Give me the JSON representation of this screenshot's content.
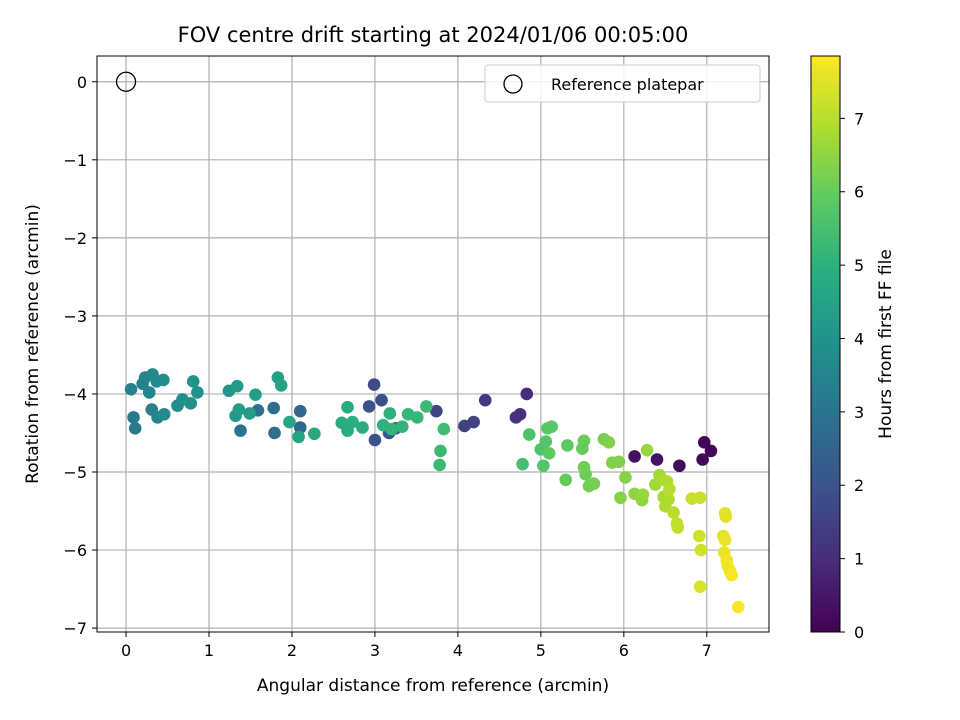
{
  "chart_data": {
    "type": "scatter",
    "title": "FOV centre drift starting at 2024/01/06 00:05:00",
    "xlabel": "Angular distance from reference (arcmin)",
    "ylabel": "Rotation from reference (arcmin)",
    "xlim": [
      -0.35,
      7.75
    ],
    "ylim": [
      -7.05,
      0.33
    ],
    "xticks": [
      0,
      1,
      2,
      3,
      4,
      5,
      6,
      7
    ],
    "yticks": [
      0,
      -1,
      -2,
      -3,
      -4,
      -5,
      -6,
      -7
    ],
    "grid": true,
    "legend": {
      "position": "top-right",
      "entries": [
        {
          "label": "Reference platepar",
          "marker": "open-circle"
        }
      ]
    },
    "reference_point": {
      "x": 0,
      "y": 0
    },
    "colorbar": {
      "label": "Hours from first FF file",
      "min": 0,
      "max": 7.85,
      "ticks": [
        0,
        1,
        2,
        3,
        4,
        5,
        6,
        7
      ],
      "colormap": "viridis"
    },
    "series": [
      {
        "points": [
          {
            "x": 6.97,
            "y": -4.62,
            "c": 0.1
          },
          {
            "x": 7.05,
            "y": -4.73,
            "c": 0.1
          },
          {
            "x": 6.95,
            "y": -4.84,
            "c": 0.15
          },
          {
            "x": 6.67,
            "y": -4.92,
            "c": 0.25
          },
          {
            "x": 6.13,
            "y": -4.8,
            "c": 0.35
          },
          {
            "x": 6.4,
            "y": -4.84,
            "c": 0.4
          },
          {
            "x": 4.83,
            "y": -4.0,
            "c": 1.0
          },
          {
            "x": 4.75,
            "y": -4.26,
            "c": 1.1
          },
          {
            "x": 4.7,
            "y": -4.3,
            "c": 1.1
          },
          {
            "x": 4.33,
            "y": -4.08,
            "c": 1.3
          },
          {
            "x": 4.19,
            "y": -4.36,
            "c": 1.5
          },
          {
            "x": 4.08,
            "y": -4.41,
            "c": 1.5
          },
          {
            "x": 3.74,
            "y": -4.22,
            "c": 1.6
          },
          {
            "x": 2.99,
            "y": -3.88,
            "c": 1.8
          },
          {
            "x": 3.08,
            "y": -4.08,
            "c": 1.9
          },
          {
            "x": 2.93,
            "y": -4.16,
            "c": 1.9
          },
          {
            "x": 3.0,
            "y": -4.59,
            "c": 2.0
          },
          {
            "x": 3.17,
            "y": -4.5,
            "c": 2.1
          },
          {
            "x": 3.25,
            "y": -4.44,
            "c": 2.3
          },
          {
            "x": 2.1,
            "y": -4.43,
            "c": 2.6
          },
          {
            "x": 2.1,
            "y": -4.22,
            "c": 2.6
          },
          {
            "x": 1.79,
            "y": -4.5,
            "c": 2.8
          },
          {
            "x": 1.78,
            "y": -4.18,
            "c": 2.8
          },
          {
            "x": 1.59,
            "y": -4.21,
            "c": 2.9
          },
          {
            "x": 1.38,
            "y": -4.47,
            "c": 3.0
          },
          {
            "x": 0.09,
            "y": -4.3,
            "c": 3.2
          },
          {
            "x": 0.11,
            "y": -4.44,
            "c": 3.2
          },
          {
            "x": 0.06,
            "y": -3.94,
            "c": 3.4
          },
          {
            "x": 0.2,
            "y": -3.87,
            "c": 3.4
          },
          {
            "x": 0.28,
            "y": -3.98,
            "c": 3.6
          },
          {
            "x": 0.23,
            "y": -3.79,
            "c": 3.5
          },
          {
            "x": 0.32,
            "y": -3.75,
            "c": 3.6
          },
          {
            "x": 0.31,
            "y": -4.2,
            "c": 3.4
          },
          {
            "x": 0.38,
            "y": -4.3,
            "c": 3.6
          },
          {
            "x": 0.46,
            "y": -4.26,
            "c": 3.7
          },
          {
            "x": 0.37,
            "y": -3.84,
            "c": 3.7
          },
          {
            "x": 0.45,
            "y": -3.82,
            "c": 3.8
          },
          {
            "x": 0.62,
            "y": -4.15,
            "c": 3.8
          },
          {
            "x": 0.68,
            "y": -4.07,
            "c": 3.9
          },
          {
            "x": 0.78,
            "y": -4.12,
            "c": 3.9
          },
          {
            "x": 0.81,
            "y": -3.84,
            "c": 4.0
          },
          {
            "x": 0.86,
            "y": -3.98,
            "c": 4.0
          },
          {
            "x": 1.24,
            "y": -3.96,
            "c": 4.1
          },
          {
            "x": 1.34,
            "y": -3.9,
            "c": 4.2
          },
          {
            "x": 1.32,
            "y": -4.28,
            "c": 4.2
          },
          {
            "x": 1.36,
            "y": -4.2,
            "c": 4.3
          },
          {
            "x": 1.49,
            "y": -4.25,
            "c": 4.3
          },
          {
            "x": 1.56,
            "y": -4.01,
            "c": 4.4
          },
          {
            "x": 1.83,
            "y": -3.79,
            "c": 4.5
          },
          {
            "x": 1.87,
            "y": -3.89,
            "c": 4.5
          },
          {
            "x": 1.97,
            "y": -4.36,
            "c": 4.6
          },
          {
            "x": 2.08,
            "y": -4.55,
            "c": 4.6
          },
          {
            "x": 2.27,
            "y": -4.51,
            "c": 4.7
          },
          {
            "x": 2.6,
            "y": -4.37,
            "c": 4.8
          },
          {
            "x": 2.67,
            "y": -4.17,
            "c": 4.8
          },
          {
            "x": 2.67,
            "y": -4.47,
            "c": 4.8
          },
          {
            "x": 2.73,
            "y": -4.36,
            "c": 4.9
          },
          {
            "x": 2.85,
            "y": -4.43,
            "c": 4.9
          },
          {
            "x": 3.1,
            "y": -4.4,
            "c": 5.0
          },
          {
            "x": 3.18,
            "y": -4.25,
            "c": 5.0
          },
          {
            "x": 3.2,
            "y": -4.45,
            "c": 5.1
          },
          {
            "x": 3.33,
            "y": -4.42,
            "c": 5.1
          },
          {
            "x": 3.4,
            "y": -4.26,
            "c": 5.2
          },
          {
            "x": 3.51,
            "y": -4.3,
            "c": 5.2
          },
          {
            "x": 3.62,
            "y": -4.16,
            "c": 5.3
          },
          {
            "x": 3.79,
            "y": -4.73,
            "c": 5.3
          },
          {
            "x": 3.78,
            "y": -4.91,
            "c": 5.3
          },
          {
            "x": 3.83,
            "y": -4.45,
            "c": 5.4
          },
          {
            "x": 4.78,
            "y": -4.9,
            "c": 5.5
          },
          {
            "x": 4.86,
            "y": -4.52,
            "c": 5.6
          },
          {
            "x": 5.0,
            "y": -4.71,
            "c": 5.6
          },
          {
            "x": 5.03,
            "y": -4.92,
            "c": 5.7
          },
          {
            "x": 5.06,
            "y": -4.61,
            "c": 5.7
          },
          {
            "x": 5.08,
            "y": -4.44,
            "c": 5.8
          },
          {
            "x": 5.13,
            "y": -4.42,
            "c": 5.8
          },
          {
            "x": 5.1,
            "y": -4.76,
            "c": 5.9
          },
          {
            "x": 5.32,
            "y": -4.66,
            "c": 5.9
          },
          {
            "x": 5.3,
            "y": -5.1,
            "c": 6.0
          },
          {
            "x": 5.5,
            "y": -4.7,
            "c": 6.0
          },
          {
            "x": 5.52,
            "y": -4.6,
            "c": 6.0
          },
          {
            "x": 5.52,
            "y": -4.94,
            "c": 6.1
          },
          {
            "x": 5.54,
            "y": -5.03,
            "c": 6.1
          },
          {
            "x": 5.58,
            "y": -5.18,
            "c": 6.2
          },
          {
            "x": 5.64,
            "y": -5.15,
            "c": 6.2
          },
          {
            "x": 5.76,
            "y": -4.58,
            "c": 6.2
          },
          {
            "x": 5.82,
            "y": -4.62,
            "c": 6.3
          },
          {
            "x": 5.86,
            "y": -4.88,
            "c": 6.3
          },
          {
            "x": 5.94,
            "y": -4.87,
            "c": 6.3
          },
          {
            "x": 5.96,
            "y": -5.33,
            "c": 6.4
          },
          {
            "x": 6.02,
            "y": -5.07,
            "c": 6.4
          },
          {
            "x": 6.13,
            "y": -5.28,
            "c": 6.5
          },
          {
            "x": 6.22,
            "y": -5.36,
            "c": 6.5
          },
          {
            "x": 6.23,
            "y": -5.29,
            "c": 6.6
          },
          {
            "x": 6.28,
            "y": -4.72,
            "c": 6.6
          },
          {
            "x": 6.38,
            "y": -5.16,
            "c": 6.7
          },
          {
            "x": 6.43,
            "y": -5.04,
            "c": 6.7
          },
          {
            "x": 6.45,
            "y": -5.09,
            "c": 6.8
          },
          {
            "x": 6.48,
            "y": -5.32,
            "c": 6.8
          },
          {
            "x": 6.5,
            "y": -5.44,
            "c": 6.9
          },
          {
            "x": 6.52,
            "y": -5.12,
            "c": 6.9
          },
          {
            "x": 6.54,
            "y": -5.35,
            "c": 6.9
          },
          {
            "x": 6.55,
            "y": -5.22,
            "c": 7.0
          },
          {
            "x": 6.6,
            "y": -5.52,
            "c": 7.0
          },
          {
            "x": 6.64,
            "y": -5.66,
            "c": 7.1
          },
          {
            "x": 6.65,
            "y": -5.71,
            "c": 7.1
          },
          {
            "x": 6.82,
            "y": -5.34,
            "c": 7.2
          },
          {
            "x": 6.92,
            "y": -5.33,
            "c": 7.2
          },
          {
            "x": 6.91,
            "y": -5.82,
            "c": 7.3
          },
          {
            "x": 6.93,
            "y": -6.0,
            "c": 7.3
          },
          {
            "x": 6.92,
            "y": -6.47,
            "c": 7.4
          },
          {
            "x": 7.22,
            "y": -5.53,
            "c": 7.5
          },
          {
            "x": 7.23,
            "y": -5.57,
            "c": 7.5
          },
          {
            "x": 7.2,
            "y": -5.82,
            "c": 7.5
          },
          {
            "x": 7.22,
            "y": -5.87,
            "c": 7.6
          },
          {
            "x": 7.21,
            "y": -6.03,
            "c": 7.6
          },
          {
            "x": 7.24,
            "y": -6.13,
            "c": 7.7
          },
          {
            "x": 7.25,
            "y": -6.2,
            "c": 7.7
          },
          {
            "x": 7.28,
            "y": -6.27,
            "c": 7.7
          },
          {
            "x": 7.3,
            "y": -6.32,
            "c": 7.8
          },
          {
            "x": 7.38,
            "y": -6.73,
            "c": 7.8
          }
        ]
      }
    ]
  }
}
